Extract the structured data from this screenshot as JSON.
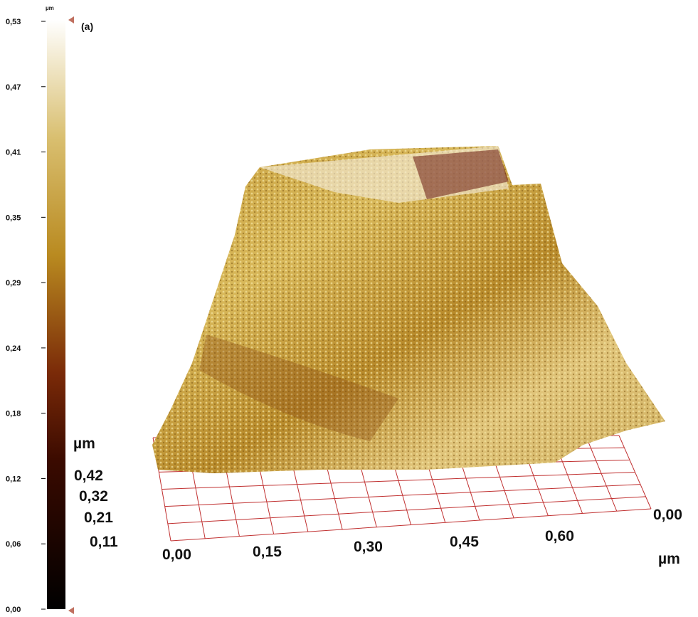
{
  "colorbar": {
    "unit": "µm",
    "ticks": [
      "0,53",
      "0,47",
      "0,41",
      "0,35",
      "0,29",
      "0,24",
      "0,18",
      "0,12",
      "0,06",
      "0,00"
    ]
  },
  "panel_label": "(a)",
  "z_scale": {
    "unit": "µm",
    "values": [
      "0,42",
      "0,32",
      "0,21",
      "0,11"
    ]
  },
  "x_axis": {
    "ticks": [
      "0,00",
      "0,15",
      "0,30",
      "0,45",
      "0,60"
    ]
  },
  "y_axis": {
    "tick": "0,00"
  },
  "axis_unit": "µm"
}
